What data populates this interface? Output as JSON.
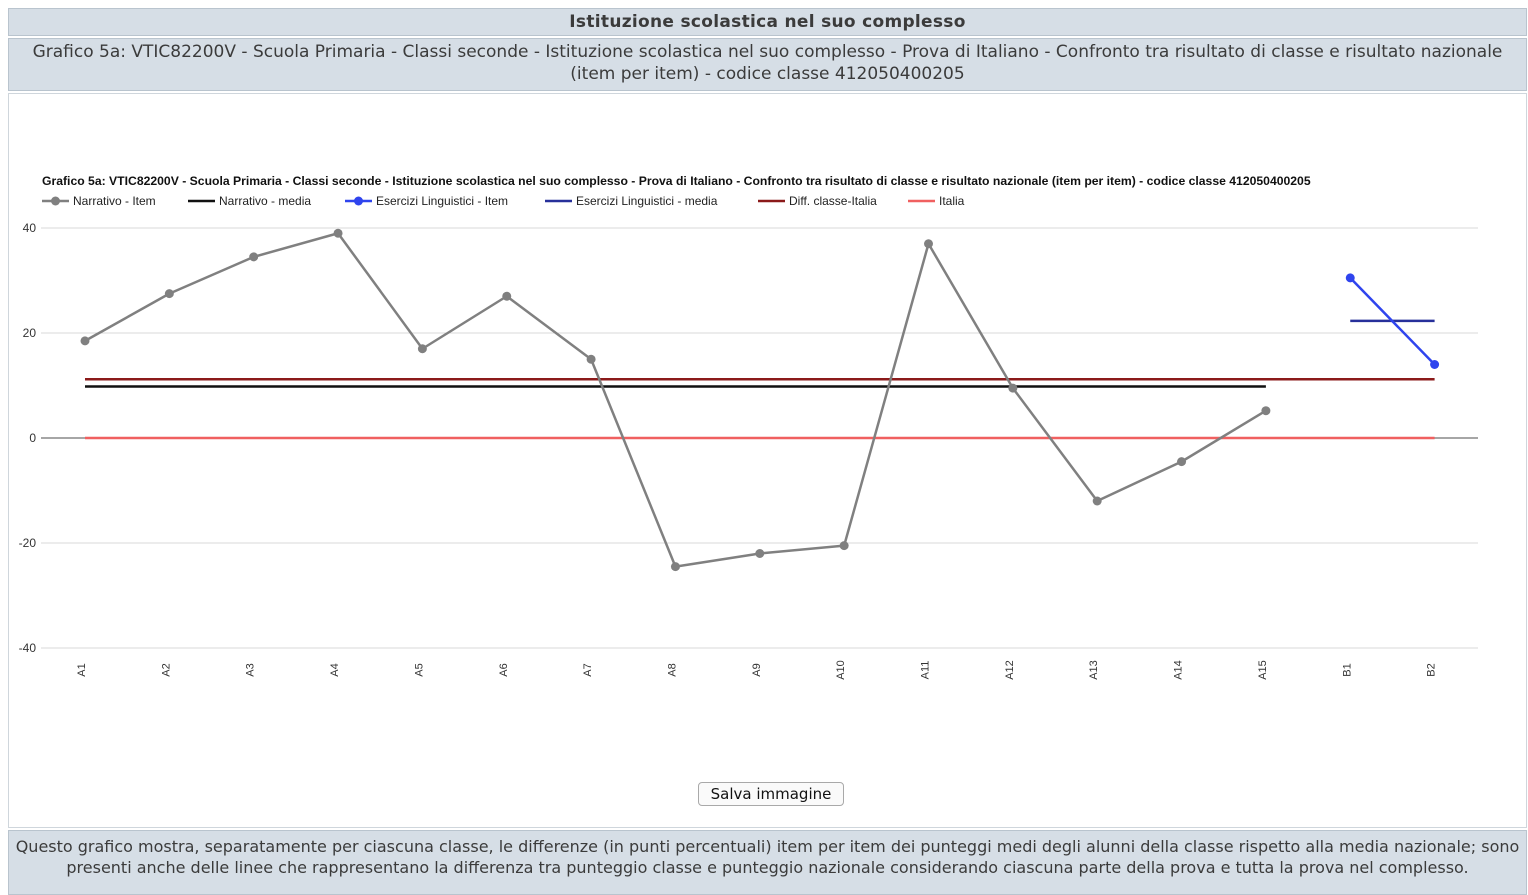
{
  "page": {
    "header": "Istituzione scolastica nel suo complesso",
    "subheader": "Grafico 5a: VTIC82200V - Scuola Primaria - Classi seconde - Istituzione scolastica nel suo complesso - Prova di Italiano - Confronto tra risultato di classe e risultato nazionale (item per item) - codice classe 412050400205",
    "save_button": "Salva immagine",
    "footer": "Questo grafico mostra, separatamente per ciascuna classe, le differenze (in punti percentuali) item per item dei punteggi medi degli alunni della classe rispetto alla media nazionale; sono presenti anche delle linee che rappresentano la differenza tra punteggio classe e punteggio nazionale considerando ciascuna parte della prova e tutta la prova nel complesso."
  },
  "chart_data": {
    "type": "line",
    "title": "Grafico 5a: VTIC82200V - Scuola Primaria - Classi seconde - Istituzione scolastica nel suo complesso - Prova di Italiano - Confronto tra risultato di classe e risultato nazionale (item per item) - codice classe 412050400205",
    "categories": [
      "A1",
      "A2",
      "A3",
      "A4",
      "A5",
      "A6",
      "A7",
      "A8",
      "A9",
      "A10",
      "A11",
      "A12",
      "A13",
      "A14",
      "A15",
      "B1",
      "B2"
    ],
    "ylim": [
      -40,
      40
    ],
    "yticks": [
      40,
      20,
      0,
      -20,
      -40
    ],
    "grid": true,
    "legend_position": "top-left",
    "series": [
      {
        "name": "Narrativo - Item",
        "kind": "points",
        "color": "#808080",
        "values": [
          18.5,
          27.5,
          34.5,
          39,
          17,
          27,
          15,
          -24.5,
          -22,
          -20.5,
          37,
          9.5,
          -12,
          -4.5,
          5.2,
          null,
          null
        ]
      },
      {
        "name": "Narrativo - media",
        "kind": "flat",
        "color": "#111111",
        "value": 9.8,
        "from": "A1",
        "to": "A15"
      },
      {
        "name": "Esercizi Linguistici - Item",
        "kind": "points",
        "color": "#2f44ee",
        "values": [
          null,
          null,
          null,
          null,
          null,
          null,
          null,
          null,
          null,
          null,
          null,
          null,
          null,
          null,
          null,
          30.5,
          14
        ]
      },
      {
        "name": "Esercizi Linguistici - media",
        "kind": "flat",
        "color": "#27309a",
        "value": 22.3,
        "from": "B1",
        "to": "B2"
      },
      {
        "name": "Diff. classe-Italia",
        "kind": "flat",
        "color": "#8b1a1a",
        "value": 11.2,
        "from": "A1",
        "to": "B2"
      },
      {
        "name": "Italia",
        "kind": "flat",
        "color": "#f06060",
        "value": 0,
        "from": "A1",
        "to": "B2"
      }
    ]
  }
}
